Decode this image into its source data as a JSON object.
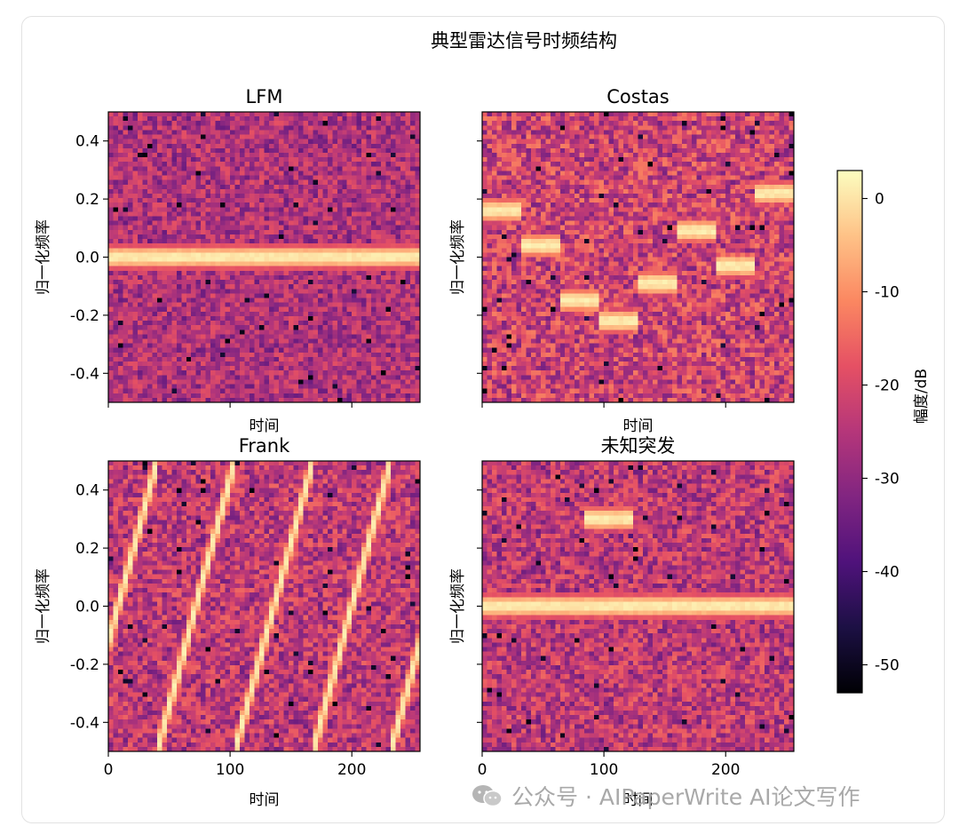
{
  "figure": {
    "title": "典型雷达信号时频结构",
    "watermark": "公众号 · AIPaperWrite AI论文写作"
  },
  "colorbar": {
    "label": "幅度/dB",
    "ticks": [
      0,
      -10,
      -20,
      -30,
      -40,
      -50
    ],
    "range": [
      -53,
      3
    ],
    "colormap": "magma",
    "colors": [
      "#000004",
      "#1c1044",
      "#4f127b",
      "#812581",
      "#b5367a",
      "#e55064",
      "#fb8761",
      "#fec287",
      "#fcfdbf"
    ]
  },
  "chart_data": [
    {
      "type": "heatmap",
      "title": "LFM",
      "xlabel": "时间",
      "ylabel": "归一化频率",
      "xlim": [
        0,
        256
      ],
      "ylim": [
        -0.5,
        0.5
      ],
      "xticks": [
        0,
        100,
        200
      ],
      "yticks": [
        0.4,
        0.2,
        0.0,
        -0.2,
        -0.4
      ],
      "show_x_tick_labels": false,
      "show_y_tick_labels": true,
      "signal": {
        "kind": "tone",
        "segments": [
          {
            "t0": 0,
            "t1": 256,
            "f": 0.0
          }
        ],
        "level_db": 2
      },
      "background_db": [
        -45,
        -18
      ]
    },
    {
      "type": "heatmap",
      "title": "Costas",
      "xlabel": "时间",
      "ylabel": "归一化频率",
      "xlim": [
        0,
        256
      ],
      "ylim": [
        -0.5,
        0.5
      ],
      "xticks": [
        0,
        100,
        200
      ],
      "yticks": [
        0.4,
        0.2,
        0.0,
        -0.2,
        -0.4
      ],
      "show_x_tick_labels": false,
      "show_y_tick_labels": false,
      "signal": {
        "kind": "hops",
        "segments": [
          {
            "t0": 0,
            "t1": 32,
            "f": 0.16
          },
          {
            "t0": 32,
            "t1": 64,
            "f": 0.04
          },
          {
            "t0": 64,
            "t1": 96,
            "f": -0.15
          },
          {
            "t0": 96,
            "t1": 128,
            "f": -0.22
          },
          {
            "t0": 128,
            "t1": 160,
            "f": -0.09
          },
          {
            "t0": 160,
            "t1": 192,
            "f": 0.09
          },
          {
            "t0": 192,
            "t1": 224,
            "f": -0.03
          },
          {
            "t0": 224,
            "t1": 256,
            "f": 0.22
          }
        ],
        "level_db": 2
      },
      "background_db": [
        -45,
        -12
      ]
    },
    {
      "type": "heatmap",
      "title": "Frank",
      "xlabel": "时间",
      "ylabel": "归一化频率",
      "xlim": [
        0,
        256
      ],
      "ylim": [
        -0.5,
        0.5
      ],
      "xticks": [
        0,
        100,
        200
      ],
      "yticks": [
        0.4,
        0.2,
        0.0,
        -0.2,
        -0.4
      ],
      "show_x_tick_labels": true,
      "show_y_tick_labels": true,
      "signal": {
        "kind": "ramps",
        "period": 64,
        "f_start": -0.5,
        "f_end": 0.5,
        "t_offset": -24,
        "level_db": 2
      },
      "background_db": [
        -45,
        -15
      ]
    },
    {
      "type": "heatmap",
      "title": "未知突发",
      "xlabel": "时间",
      "ylabel": "归一化频率",
      "xlim": [
        0,
        256
      ],
      "ylim": [
        -0.5,
        0.5
      ],
      "xticks": [
        0,
        100,
        200
      ],
      "yticks": [
        0.4,
        0.2,
        0.0,
        -0.2,
        -0.4
      ],
      "show_x_tick_labels": true,
      "show_y_tick_labels": false,
      "signal": {
        "kind": "tone_and_burst",
        "segments": [
          {
            "t0": 0,
            "t1": 256,
            "f": 0.0
          },
          {
            "t0": 84,
            "t1": 124,
            "f": 0.3
          }
        ],
        "level_db": 2
      },
      "background_db": [
        -45,
        -15
      ]
    }
  ]
}
